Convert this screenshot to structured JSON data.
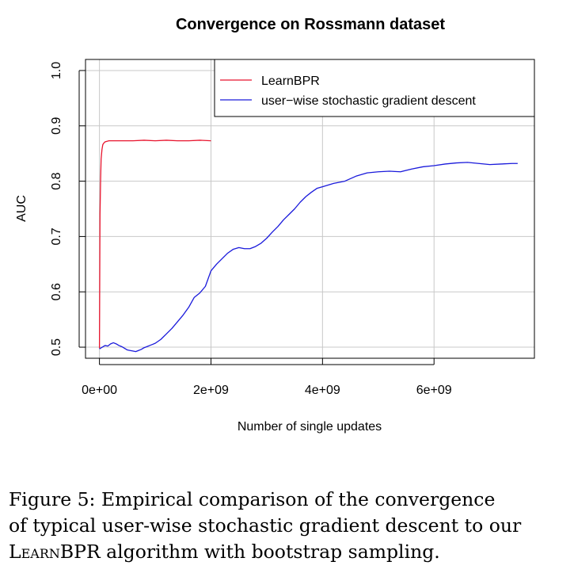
{
  "chart_data": {
    "type": "line",
    "title": "Convergence on Rossmann dataset",
    "xlabel": "Number of single updates",
    "ylabel": "AUC",
    "xlim": [
      -250000000,
      7800000000
    ],
    "ylim": [
      0.48,
      1.02
    ],
    "x_ticks": [
      0,
      2000000000,
      4000000000,
      6000000000
    ],
    "x_tick_labels": [
      "0e+00",
      "2e+09",
      "4e+09",
      "6e+09"
    ],
    "y_ticks": [
      0.5,
      0.6,
      0.7,
      0.8,
      0.9,
      1.0
    ],
    "y_tick_labels": [
      "0.5",
      "0.6",
      "0.7",
      "0.8",
      "0.9",
      "1.0"
    ],
    "grid": true,
    "legend_position": "top-right",
    "series": [
      {
        "name": "LearnBPR",
        "color": "#e8152e",
        "x": [
          0,
          5000000,
          10000000,
          20000000,
          30000000,
          45000000,
          60000000,
          80000000,
          100000000,
          130000000,
          170000000,
          220000000,
          300000000,
          400000000,
          600000000,
          800000000,
          1000000000,
          1200000000,
          1400000000,
          1600000000,
          1800000000,
          2000000000
        ],
        "y": [
          0.498,
          0.62,
          0.74,
          0.8,
          0.84,
          0.857,
          0.866,
          0.869,
          0.871,
          0.872,
          0.873,
          0.873,
          0.873,
          0.873,
          0.873,
          0.874,
          0.873,
          0.874,
          0.873,
          0.873,
          0.874,
          0.873
        ]
      },
      {
        "name": "user−wise stochastic gradient descent",
        "color": "#1a1adb",
        "x": [
          0,
          50000000,
          100000000,
          150000000,
          200000000,
          250000000,
          300000000,
          350000000,
          400000000,
          450000000,
          500000000,
          550000000,
          600000000,
          650000000,
          700000000,
          750000000,
          800000000,
          850000000,
          900000000,
          950000000,
          1000000000,
          1100000000,
          1200000000,
          1300000000,
          1400000000,
          1500000000,
          1600000000,
          1700000000,
          1800000000,
          1900000000,
          2000000000,
          2100000000,
          2200000000,
          2300000000,
          2400000000,
          2500000000,
          2600000000,
          2700000000,
          2800000000,
          2900000000,
          3000000000,
          3100000000,
          3200000000,
          3300000000,
          3400000000,
          3500000000,
          3600000000,
          3700000000,
          3800000000,
          3900000000,
          4000000000,
          4200000000,
          4400000000,
          4600000000,
          4800000000,
          5000000000,
          5200000000,
          5400000000,
          5600000000,
          5800000000,
          6000000000,
          6200000000,
          6400000000,
          6600000000,
          6800000000,
          7000000000,
          7200000000,
          7400000000,
          7500000000
        ],
        "y": [
          0.497,
          0.5,
          0.503,
          0.502,
          0.506,
          0.508,
          0.506,
          0.503,
          0.501,
          0.498,
          0.495,
          0.494,
          0.493,
          0.492,
          0.494,
          0.496,
          0.499,
          0.501,
          0.503,
          0.505,
          0.507,
          0.514,
          0.524,
          0.534,
          0.546,
          0.558,
          0.572,
          0.59,
          0.598,
          0.61,
          0.638,
          0.65,
          0.66,
          0.67,
          0.677,
          0.68,
          0.678,
          0.678,
          0.682,
          0.688,
          0.697,
          0.708,
          0.718,
          0.73,
          0.74,
          0.75,
          0.762,
          0.772,
          0.78,
          0.787,
          0.79,
          0.796,
          0.8,
          0.809,
          0.815,
          0.817,
          0.818,
          0.817,
          0.822,
          0.826,
          0.828,
          0.831,
          0.833,
          0.834,
          0.832,
          0.83,
          0.831,
          0.832,
          0.832
        ]
      }
    ]
  },
  "caption": {
    "line1": "Figure 5:  Empirical comparison of the convergence",
    "line2": "of typical user-wise stochastic gradient descent to our",
    "line3_smallcaps": "LearnBPR",
    "line3_rest": " algorithm with bootstrap sampling."
  }
}
